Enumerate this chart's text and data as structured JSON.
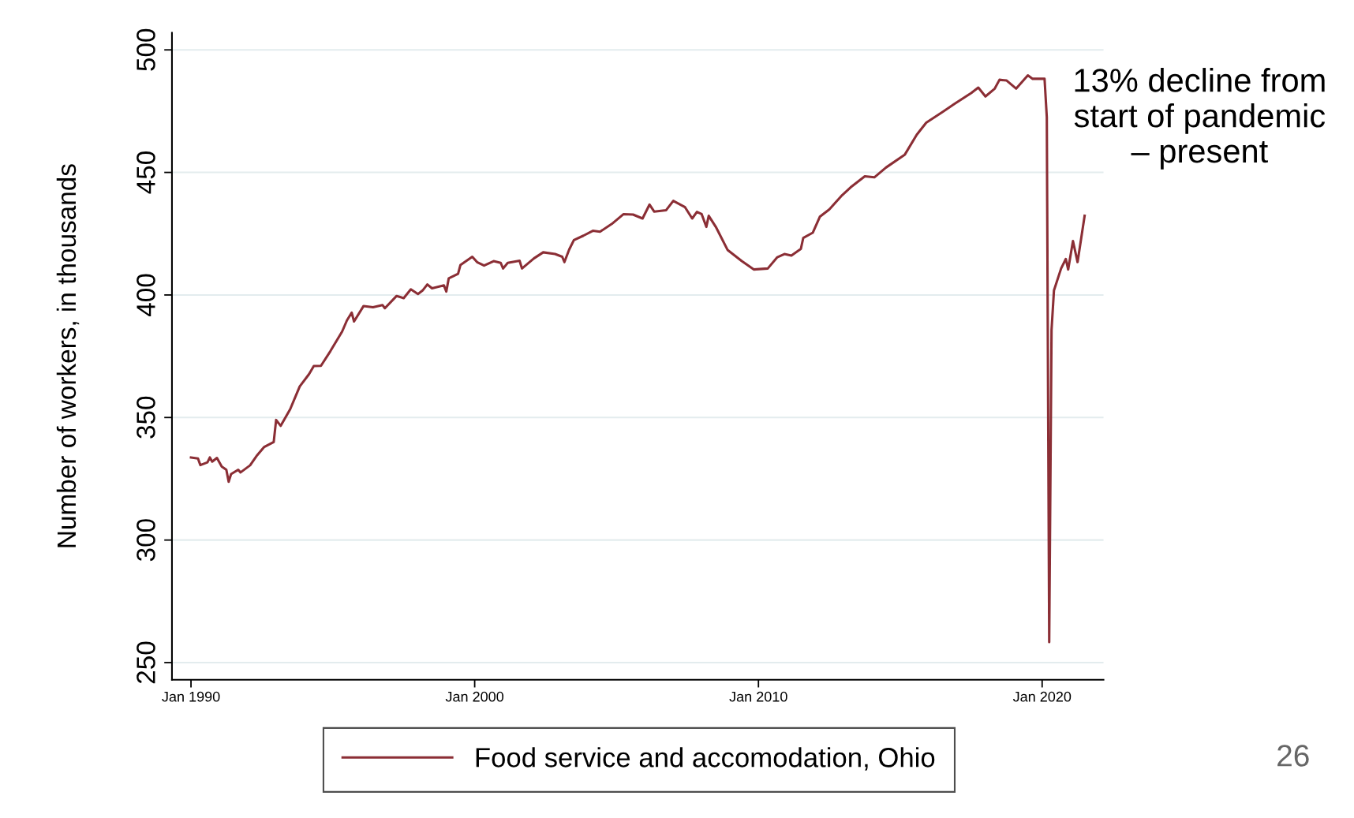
{
  "chart_data": {
    "type": "line",
    "ylabel": "Number of workers, in thousands",
    "x": [
      "1990-01",
      "1990-04",
      "1990-05",
      "1990-08",
      "1990-09",
      "1990-10",
      "1990-12",
      "1991-02",
      "1991-04",
      "1991-05",
      "1991-06",
      "1991-09",
      "1991-10",
      "1992-02",
      "1992-05",
      "1992-08",
      "1992-12",
      "1993-01",
      "1993-03",
      "1993-07",
      "1993-11",
      "1994-03",
      "1994-05",
      "1994-08",
      "1994-12",
      "1995-05",
      "1995-07",
      "1995-09",
      "1995-10",
      "1996-02",
      "1996-06",
      "1996-10",
      "1996-11",
      "1997-04",
      "1997-07",
      "1997-10",
      "1998-01",
      "1998-03",
      "1998-05",
      "1998-07",
      "1998-12",
      "1999-01",
      "1999-02",
      "1999-06",
      "1999-07",
      "1999-12",
      "2000-02",
      "2000-05",
      "2000-09",
      "2000-12",
      "2001-01",
      "2001-03",
      "2001-08",
      "2001-09",
      "2002-02",
      "2002-06",
      "2002-11",
      "2003-02",
      "2003-03",
      "2003-05",
      "2003-07",
      "2003-11",
      "2004-03",
      "2004-06",
      "2004-11",
      "2005-04",
      "2005-08",
      "2005-12",
      "2006-03",
      "2006-05",
      "2006-10",
      "2007-01",
      "2007-06",
      "2007-09",
      "2007-11",
      "2008-01",
      "2008-03",
      "2008-04",
      "2008-07",
      "2008-12",
      "2009-06",
      "2009-11",
      "2010-05",
      "2010-09",
      "2010-12",
      "2011-03",
      "2011-07",
      "2011-08",
      "2011-12",
      "2012-03",
      "2012-07",
      "2012-12",
      "2013-04",
      "2013-10",
      "2014-02",
      "2014-07",
      "2015-03",
      "2015-08",
      "2015-12",
      "2016-07",
      "2016-12",
      "2017-07",
      "2017-10",
      "2018-01",
      "2018-05",
      "2018-07",
      "2018-10",
      "2019-02",
      "2019-07",
      "2019-09",
      "2020-02",
      "2020-03",
      "2020-04",
      "2020-05",
      "2020-06",
      "2020-09",
      "2020-11",
      "2020-12",
      "2021-02",
      "2021-04",
      "2021-07"
    ],
    "series": [
      {
        "name": "Food service and accomodation, Ohio",
        "color": "#8b2e35",
        "values": [
          333.7,
          333.3,
          330.6,
          331.7,
          333.7,
          332,
          333.5,
          330,
          328.7,
          323.8,
          326.9,
          328.7,
          327.6,
          330.5,
          334.6,
          338,
          340,
          349,
          346.6,
          353.4,
          362.7,
          367.7,
          371,
          371.1,
          377.1,
          385.1,
          389.6,
          392.8,
          389.2,
          395.5,
          395,
          395.9,
          394.6,
          399.6,
          398.7,
          402.3,
          400.4,
          401.8,
          404.3,
          402.7,
          403.9,
          401.4,
          406.8,
          408.6,
          412.2,
          415.6,
          413.4,
          412,
          413.8,
          413.1,
          410.8,
          413.1,
          414,
          410.8,
          414.9,
          417.4,
          416.7,
          415.6,
          413.4,
          418.5,
          422.4,
          424.2,
          426.2,
          425.8,
          429,
          433,
          432.8,
          431.2,
          436.9,
          434,
          434.6,
          438.4,
          435.8,
          431.2,
          433.9,
          433,
          427.8,
          432.3,
          427.8,
          418.3,
          413.8,
          410.4,
          410.8,
          415.4,
          416.7,
          416.1,
          418.8,
          423.3,
          425.4,
          431.9,
          434.9,
          440.3,
          443.9,
          448.4,
          448,
          452,
          457.3,
          465.4,
          470.3,
          474.7,
          478,
          482.4,
          484.6,
          481,
          484.2,
          487.8,
          487.5,
          484.2,
          489.6,
          488.2,
          488.2,
          472.6,
          258.4,
          385.7,
          401.8,
          410.8,
          414.7,
          410.4,
          422,
          413.4,
          432.3
        ]
      }
    ],
    "xlim": [
      "1989-05",
      "2022-03"
    ],
    "xticks": [
      {
        "value": "1990-01",
        "label": "Jan 1990"
      },
      {
        "value": "2000-01",
        "label": "Jan 2000"
      },
      {
        "value": "2010-01",
        "label": "Jan 2010"
      },
      {
        "value": "2020-01",
        "label": "Jan 2020"
      }
    ],
    "ylim": [
      243,
      507
    ],
    "yticks": [
      250,
      300,
      350,
      400,
      450,
      500
    ],
    "grid": "y",
    "legend": "bottom",
    "line_style": "solid",
    "marker": "none",
    "annotations": [
      "13% decline from\nstart of pandemic\n– present",
      "26"
    ]
  }
}
